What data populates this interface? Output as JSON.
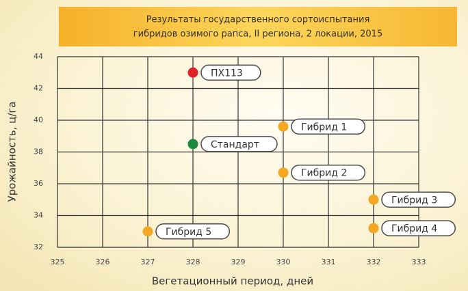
{
  "chart_data": {
    "type": "scatter",
    "title": [
      "Результаты государственного сортоиспытания",
      "гибридов озимого рапса, II региона, 2 локации, 2015"
    ],
    "x_label": "Вегетационный период, дней",
    "y_label": "Урожайность, ц/га",
    "xlim": [
      325,
      333
    ],
    "xticks": [
      325,
      326,
      327,
      328,
      329,
      330,
      331,
      332,
      333
    ],
    "ylim": [
      32,
      44
    ],
    "yticks": [
      32,
      34,
      36,
      38,
      40,
      42,
      44
    ],
    "grid": true,
    "series": [
      {
        "name": "ПХ113",
        "color": "#e32028",
        "x": [
          328
        ],
        "values": [
          43
        ]
      },
      {
        "name": "Стандарт",
        "color": "#1a8a3e",
        "x": [
          328
        ],
        "values": [
          38.5
        ]
      },
      {
        "name": "Гибрид 1",
        "color": "#f5a623",
        "x": [
          330
        ],
        "values": [
          39.6
        ]
      },
      {
        "name": "Гибрид 2",
        "color": "#f5a623",
        "x": [
          330
        ],
        "values": [
          36.7
        ]
      },
      {
        "name": "Гибрид 3",
        "color": "#f5a623",
        "x": [
          332
        ],
        "values": [
          35
        ]
      },
      {
        "name": "Гибрид 4",
        "color": "#f5a623",
        "x": [
          332
        ],
        "values": [
          33.2
        ]
      },
      {
        "name": "Гибрид 5",
        "color": "#f5a623",
        "x": [
          327
        ],
        "values": [
          33
        ]
      }
    ]
  }
}
